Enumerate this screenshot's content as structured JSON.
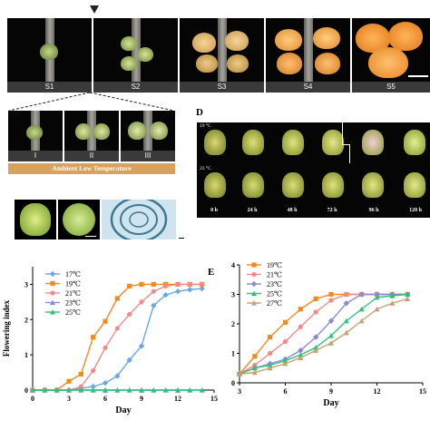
{
  "stages": [
    "S1",
    "S2",
    "S3",
    "S4",
    "S5"
  ],
  "substages": [
    "I",
    "II",
    "III"
  ],
  "ambient_label": "Ambient Low Temperature",
  "panel_d": {
    "label": "D",
    "row1_temp": "19 °C",
    "row2_temp": "23 °C",
    "hours": [
      "0 h",
      "24 h",
      "48 h",
      "72 h",
      "96 h",
      "120 h"
    ]
  },
  "panel_e_label": "E",
  "colors": {
    "c17": "#6aa6e8",
    "c19": "#f28a1c",
    "c21": "#f28a8a",
    "c23": "#8a8ad8",
    "c25": "#2ec27a",
    "c27": "#c8a070"
  },
  "chart_data": [
    {
      "type": "line",
      "xlabel": "Day",
      "ylabel": "Flowering index",
      "xlim": [
        0,
        15
      ],
      "ylim": [
        0,
        3.5
      ],
      "xticks": [
        0,
        3,
        6,
        9,
        12,
        15
      ],
      "yticks": [
        0,
        1,
        2,
        3
      ],
      "legend": "top-left",
      "series": [
        {
          "name": "17℃",
          "color": "#6aa6e8",
          "marker": "diamond",
          "x": [
            0,
            1,
            2,
            3,
            4,
            5,
            6,
            7,
            8,
            9,
            10,
            11,
            12,
            13,
            14
          ],
          "y": [
            0,
            0,
            0,
            0,
            0.05,
            0.1,
            0.2,
            0.4,
            0.85,
            1.25,
            2.4,
            2.7,
            2.8,
            2.85,
            2.88
          ]
        },
        {
          "name": "19℃",
          "color": "#f28a1c",
          "marker": "square",
          "x": [
            0,
            1,
            2,
            3,
            4,
            5,
            6,
            7,
            8,
            9,
            10,
            11,
            12,
            13,
            14
          ],
          "y": [
            0,
            0,
            0,
            0.25,
            0.45,
            1.5,
            1.95,
            2.6,
            2.95,
            3,
            3,
            3,
            3,
            3,
            3
          ]
        },
        {
          "name": "21℃",
          "color": "#f28a8a",
          "marker": "circle",
          "x": [
            0,
            1,
            2,
            3,
            4,
            5,
            6,
            7,
            8,
            9,
            10,
            11,
            12,
            13,
            14
          ],
          "y": [
            0,
            0,
            0,
            0,
            0.1,
            0.55,
            1.2,
            1.75,
            2.15,
            2.5,
            2.8,
            2.95,
            3,
            3,
            3
          ]
        },
        {
          "name": "23℃",
          "color": "#8a8ad8",
          "marker": "triangle",
          "x": [
            0,
            1,
            2,
            3,
            4,
            5,
            6,
            7,
            8,
            9,
            10,
            11,
            12,
            13,
            14
          ],
          "y": [
            0,
            0,
            0,
            0,
            0,
            0,
            0,
            0,
            0,
            0,
            0,
            0,
            0,
            0,
            0
          ]
        },
        {
          "name": "25℃",
          "color": "#2ec27a",
          "marker": "triangle",
          "x": [
            0,
            1,
            2,
            3,
            4,
            5,
            6,
            7,
            8,
            9,
            10,
            11,
            12,
            13,
            14
          ],
          "y": [
            0,
            0,
            0,
            0,
            0,
            0,
            0,
            0,
            0,
            0,
            0,
            0,
            0,
            0,
            0
          ]
        }
      ]
    },
    {
      "type": "line",
      "xlabel": "Day",
      "xlim": [
        3,
        15
      ],
      "ylim": [
        0,
        4
      ],
      "xticks": [
        3,
        6,
        9,
        12,
        15
      ],
      "yticks": [
        0,
        1,
        2,
        3,
        4
      ],
      "legend": "top-left",
      "series": [
        {
          "name": "19℃",
          "color": "#f28a1c",
          "marker": "square",
          "x": [
            3,
            4,
            5,
            6,
            7,
            8,
            9,
            10,
            11,
            12,
            13,
            14
          ],
          "y": [
            0.3,
            0.9,
            1.55,
            2.05,
            2.5,
            2.85,
            3,
            3,
            3,
            3,
            3,
            3
          ]
        },
        {
          "name": "21℃",
          "color": "#f28a8a",
          "marker": "circle",
          "x": [
            3,
            4,
            5,
            6,
            7,
            8,
            9,
            10,
            11,
            12,
            13,
            14
          ],
          "y": [
            0.3,
            0.6,
            1,
            1.4,
            1.9,
            2.4,
            2.8,
            3,
            3,
            3,
            3,
            3
          ]
        },
        {
          "name": "23℃",
          "color": "#8a8ad8",
          "marker": "diamond",
          "x": [
            3,
            4,
            5,
            6,
            7,
            8,
            9,
            10,
            11,
            12,
            13,
            14
          ],
          "y": [
            0.3,
            0.5,
            0.65,
            0.8,
            1.1,
            1.55,
            2.1,
            2.7,
            3,
            3,
            3,
            3
          ]
        },
        {
          "name": "25℃",
          "color": "#2ec27a",
          "marker": "triangle",
          "x": [
            3,
            4,
            5,
            6,
            7,
            8,
            9,
            10,
            11,
            12,
            13,
            14
          ],
          "y": [
            0.3,
            0.5,
            0.6,
            0.75,
            0.95,
            1.2,
            1.6,
            2.1,
            2.5,
            2.9,
            2.95,
            3
          ]
        },
        {
          "name": "27℃",
          "color": "#c8a070",
          "marker": "triangle",
          "x": [
            3,
            4,
            5,
            6,
            7,
            8,
            9,
            10,
            11,
            12,
            13,
            14
          ],
          "y": [
            0.3,
            0.35,
            0.5,
            0.65,
            0.85,
            1.1,
            1.35,
            1.7,
            2.1,
            2.5,
            2.7,
            2.85
          ]
        }
      ]
    }
  ]
}
